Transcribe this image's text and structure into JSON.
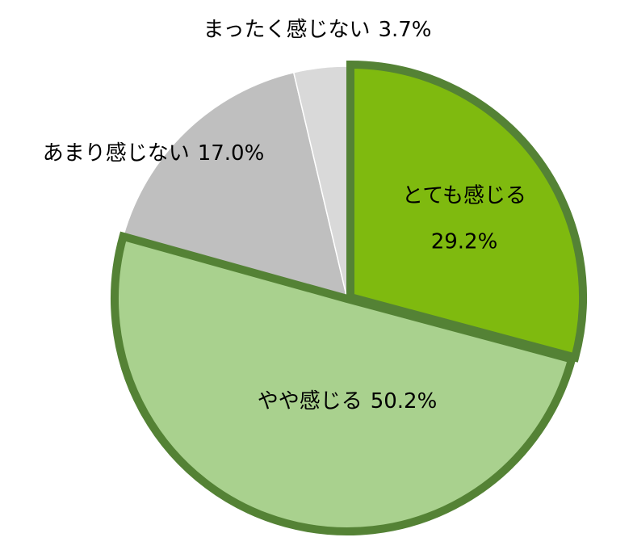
{
  "chart_data": {
    "type": "pie",
    "categories": [
      "とても感じる",
      "やや感じる",
      "あまり感じない",
      "まったく感じない"
    ],
    "values": [
      29.2,
      50.2,
      17.0,
      3.7
    ],
    "value_labels": [
      "29.2%",
      "50.2%",
      "17.0%",
      "3.7%"
    ],
    "colors": [
      "#7fba0f",
      "#a9d18e",
      "#bfbfbf",
      "#d9d9d9"
    ],
    "outline_color": "#548235"
  }
}
